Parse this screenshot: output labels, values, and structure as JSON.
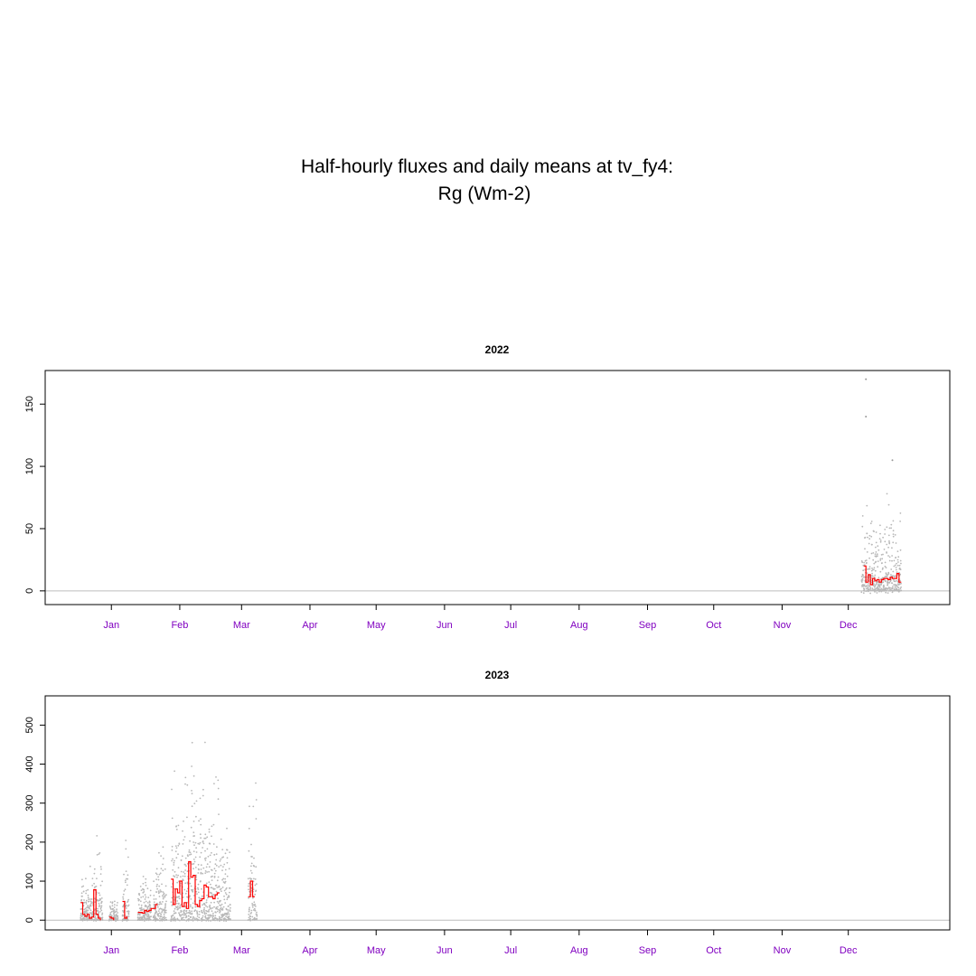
{
  "figure": {
    "title_line1": "Half-hourly fluxes and daily means at tv_fy4:",
    "title_line2": "Rg (Wm-2)"
  },
  "colors": {
    "points": "#b8b8b8",
    "daily_mean": "#ff0000",
    "zero_line": "#bebebe",
    "month_labels": "#8000c0",
    "axes": "#000000"
  },
  "chart_data": [
    {
      "type": "scatter",
      "title": "2022",
      "xlabel": "",
      "ylabel": "",
      "x_tick_labels": [
        "Jan",
        "Feb",
        "Mar",
        "Apr",
        "May",
        "Jun",
        "Jul",
        "Aug",
        "Sep",
        "Oct",
        "Nov",
        "Dec"
      ],
      "x_tick_days": [
        15,
        46,
        74,
        105,
        135,
        166,
        196,
        227,
        258,
        288,
        319,
        349
      ],
      "xlim_day": [
        -15,
        395
      ],
      "y_ticks": [
        0,
        50,
        100,
        150
      ],
      "ylim": [
        -11,
        177
      ],
      "zero_line": true,
      "series": [
        {
          "kind": "half_hourly_points",
          "clusters": [
            {
              "day_start": 355,
              "day_end": 363,
              "max": 80,
              "outliers": [
                [
                  357,
                  170
                ],
                [
                  357,
                  140
                ]
              ]
            },
            {
              "day_start": 363,
              "day_end": 373,
              "max": 85,
              "outliers": [
                [
                  369,
                  105
                ]
              ]
            }
          ]
        },
        {
          "kind": "daily_mean_step",
          "values": [
            [
              356,
              20
            ],
            [
              357,
              7
            ],
            [
              358,
              13
            ],
            [
              359,
              5
            ],
            [
              360,
              10
            ],
            [
              361,
              8
            ],
            [
              362,
              9
            ],
            [
              363,
              7
            ],
            [
              364,
              9
            ],
            [
              365,
              10
            ],
            [
              366,
              10
            ],
            [
              367,
              9
            ],
            [
              368,
              11
            ],
            [
              369,
              10
            ],
            [
              370,
              10
            ],
            [
              371,
              14
            ],
            [
              372,
              7
            ]
          ],
          "end_day": 373
        }
      ]
    },
    {
      "type": "scatter",
      "title": "2023",
      "xlabel": "",
      "ylabel": "",
      "x_tick_labels": [
        "Jan",
        "Feb",
        "Mar",
        "Apr",
        "May",
        "Jun",
        "Jul",
        "Aug",
        "Sep",
        "Oct",
        "Nov",
        "Dec"
      ],
      "x_tick_days": [
        15,
        46,
        74,
        105,
        135,
        166,
        196,
        227,
        258,
        288,
        319,
        349
      ],
      "xlim_day": [
        -15,
        395
      ],
      "y_ticks": [
        0,
        100,
        200,
        300,
        400,
        500
      ],
      "ylim": [
        -25,
        575
      ],
      "zero_line": true,
      "series": [
        {
          "kind": "half_hourly_points",
          "clusters": [
            {
              "day_start": 1,
              "day_end": 7,
              "max": 160
            },
            {
              "day_start": 7,
              "day_end": 11,
              "max": 280
            },
            {
              "day_start": 14,
              "day_end": 18,
              "max": 80
            },
            {
              "day_start": 20,
              "day_end": 23,
              "max": 245
            },
            {
              "day_start": 27,
              "day_end": 33,
              "max": 150
            },
            {
              "day_start": 34,
              "day_end": 40,
              "max": 230
            },
            {
              "day_start": 42,
              "day_end": 50,
              "max": 430
            },
            {
              "day_start": 50,
              "day_end": 58,
              "max": 560
            },
            {
              "day_start": 58,
              "day_end": 64,
              "max": 470
            },
            {
              "day_start": 64,
              "day_end": 69,
              "max": 330
            },
            {
              "day_start": 77,
              "day_end": 81,
              "max": 440
            }
          ]
        },
        {
          "kind": "daily_mean_step",
          "segments": [
            [
              [
                1,
                45
              ],
              [
                2,
                15
              ],
              [
                3,
                10
              ],
              [
                4,
                15
              ],
              [
                5,
                5
              ],
              [
                6,
                8
              ],
              [
                7,
                78
              ],
              [
                8,
                15
              ],
              [
                9,
                5
              ],
              [
                10,
                0
              ]
            ],
            [
              [
                14,
                8
              ],
              [
                15,
                5
              ],
              [
                16,
                0
              ]
            ],
            [
              [
                20,
                48
              ],
              [
                21,
                5
              ],
              [
                22,
                10
              ]
            ],
            [
              [
                27,
                20
              ],
              [
                28,
                20
              ],
              [
                29,
                18
              ],
              [
                30,
                25
              ],
              [
                31,
                22
              ],
              [
                32,
                25
              ],
              [
                33,
                30
              ],
              [
                34,
                30
              ],
              [
                35,
                40
              ]
            ],
            [
              [
                42,
                105
              ],
              [
                43,
                40
              ],
              [
                44,
                80
              ],
              [
                45,
                70
              ],
              [
                46,
                100
              ],
              [
                47,
                35
              ],
              [
                48,
                45
              ],
              [
                49,
                30
              ],
              [
                50,
                150
              ],
              [
                51,
                110
              ],
              [
                52,
                115
              ],
              [
                53,
                40
              ],
              [
                54,
                35
              ],
              [
                55,
                50
              ],
              [
                56,
                55
              ],
              [
                57,
                90
              ],
              [
                58,
                85
              ],
              [
                59,
                60
              ],
              [
                60,
                60
              ],
              [
                61,
                55
              ],
              [
                62,
                65
              ],
              [
                63,
                70
              ]
            ],
            [
              [
                77,
                60
              ],
              [
                78,
                100
              ],
              [
                79,
                60
              ]
            ]
          ],
          "segment_ends": [
            10,
            16,
            22,
            36,
            64,
            80
          ]
        }
      ]
    }
  ]
}
